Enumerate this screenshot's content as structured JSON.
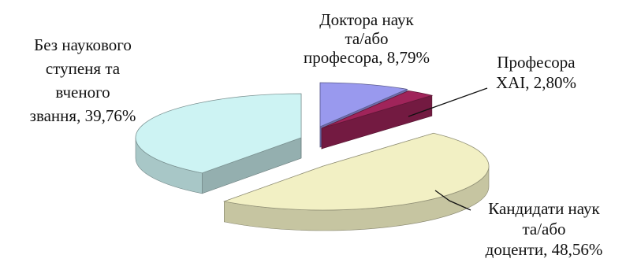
{
  "chart_data": {
    "type": "pie",
    "subtype": "3d-exploded",
    "legend": "none",
    "slices": [
      {
        "name": "Доктора наук та/або професори",
        "value": 8.79,
        "label_lines": [
          "Доктора наук",
          "та/або",
          "професора, 8,79%"
        ],
        "color": "#9999ee"
      },
      {
        "name": "Професора ХАІ",
        "value": 2.8,
        "label_lines": [
          "Професора",
          "ХАІ, 2,80%"
        ],
        "color": "#a0245a"
      },
      {
        "name": "Кандидати наук та/або доценти",
        "value": 48.56,
        "label_lines": [
          "Кандидати наук",
          "та/або",
          "доценти, 48,56%"
        ],
        "color": "#f2f0c4"
      },
      {
        "name": "Без наукового ступеня та вченого звання",
        "value": 39.76,
        "label_lines": [
          "Без наукового",
          "ступеня та",
          "вченого",
          "звання, 39,76%"
        ],
        "color": "#cdf3f3"
      }
    ]
  }
}
